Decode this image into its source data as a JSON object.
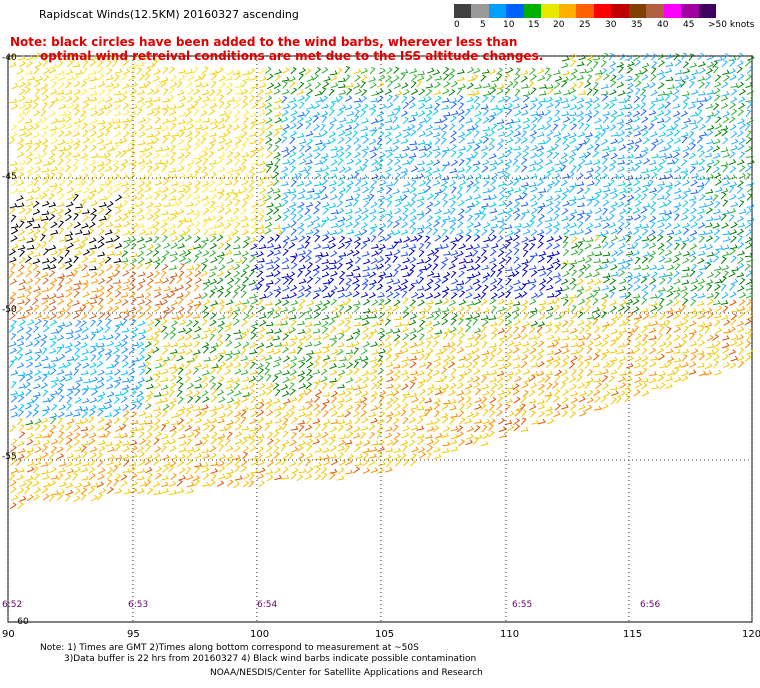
{
  "title": "Rapidscat Winds(12.5KM) 20160327 ascending",
  "note": {
    "line1": "Note: black circles have been added to the wind barbs, wherever less than",
    "line2": "optimal wind retreival conditions are met due to the ISS altitude changes."
  },
  "colorbar": {
    "labels": [
      "0",
      "5",
      "10",
      "15",
      "20",
      "25",
      "30",
      "35",
      "40",
      "45",
      ">50 knots"
    ],
    "colors": [
      "#404040",
      "#9a9a9a",
      "#00a0ff",
      "#0060ff",
      "#00b000",
      "#e8e800",
      "#ffb000",
      "#ff6000",
      "#ff0000",
      "#c00000",
      "#804000",
      "#b06040",
      "#ff00ff",
      "#a000a0",
      "#400060"
    ]
  },
  "latitudes": [
    "-40",
    "-45",
    "-50",
    "-55",
    "-60"
  ],
  "longitudes": [
    "90",
    "95",
    "100",
    "105",
    "110",
    "115",
    "120"
  ],
  "times": [
    "6:52",
    "6:53",
    "6:54",
    "6:55",
    "6:56"
  ],
  "footer": {
    "line1": "Note: 1) Times are GMT 2)Times along bottom correspond to measurement at ~50S",
    "line2": "3)Data buffer is 22 hrs from 20160327 4) Black wind barbs indicate possible contamination",
    "line3": "NOAA/NESDIS/Center for Satellite Applications and Research"
  }
}
